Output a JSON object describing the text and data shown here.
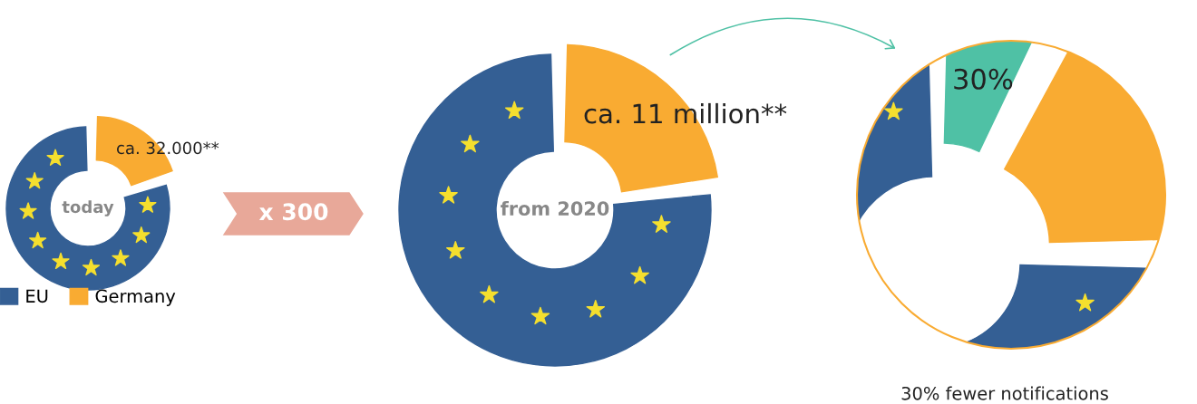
{
  "chart_data": [
    {
      "type": "donut",
      "title": "today",
      "categories": [
        "EU",
        "Germany"
      ],
      "values": [
        80,
        20
      ],
      "colors": [
        "#345f94",
        "#f9ab32"
      ],
      "annotations": [
        "ca. 32.000**"
      ],
      "legend": "bottom"
    },
    {
      "type": "donut",
      "title": "from 2020",
      "categories": [
        null,
        null
      ],
      "values": [
        77,
        23
      ],
      "colors": [
        "#345f94",
        "#f9ab32"
      ],
      "annotations": [
        "ca. 11 million**",
        "x 300"
      ]
    },
    {
      "type": "donut",
      "categories": [
        null,
        null,
        null
      ],
      "values": [
        75,
        7.5,
        17.5
      ],
      "colors": [
        "#345f94",
        "#4fc1a5",
        "#f9ab32"
      ],
      "annotations": [
        "30%",
        "30% fewer notifications"
      ]
    }
  ]
}
